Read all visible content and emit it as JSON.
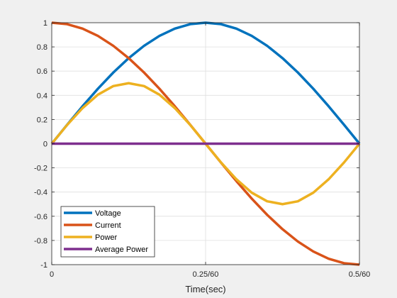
{
  "chart_data": {
    "type": "line",
    "xlabel": "Time(sec)",
    "ylabel": "",
    "title": "",
    "x_unit_period": "1/60",
    "x_range_fraction_of_period": [
      0,
      0.5
    ],
    "xlim": [
      0,
      0.008333
    ],
    "ylim": [
      -1,
      1
    ],
    "x_ticks": [
      {
        "value": 0,
        "label": "0"
      },
      {
        "value": 0.0041667,
        "label": "0.25/60"
      },
      {
        "value": 0.0083333,
        "label": "0.5/60"
      }
    ],
    "y_ticks": [
      {
        "value": 1,
        "label": "1"
      },
      {
        "value": 0.8,
        "label": "0.8"
      },
      {
        "value": 0.6,
        "label": "0.6"
      },
      {
        "value": 0.4,
        "label": "0.4"
      },
      {
        "value": 0.2,
        "label": "0.2"
      },
      {
        "value": 0,
        "label": "0"
      },
      {
        "value": -0.2,
        "label": "-0.2"
      },
      {
        "value": -0.4,
        "label": "-0.4"
      },
      {
        "value": -0.6,
        "label": "-0.6"
      },
      {
        "value": -0.8,
        "label": "-0.8"
      },
      {
        "value": -1,
        "label": "-1"
      }
    ],
    "grid": true,
    "legend_position": "bottom-left",
    "x": [
      0,
      0.00041667,
      0.00083333,
      0.00125,
      0.00166667,
      0.00208333,
      0.0025,
      0.00291667,
      0.00333333,
      0.00375,
      0.00416667,
      0.00458333,
      0.005,
      0.00541667,
      0.00583333,
      0.00625,
      0.00666667,
      0.00708333,
      0.0075,
      0.00791667,
      0.00833333
    ],
    "series": [
      {
        "name": "Voltage",
        "color": "#0072BD",
        "values": [
          0,
          0.156,
          0.309,
          0.454,
          0.588,
          0.707,
          0.809,
          0.891,
          0.951,
          0.988,
          1.0,
          0.988,
          0.951,
          0.891,
          0.809,
          0.707,
          0.588,
          0.454,
          0.309,
          0.156,
          0
        ]
      },
      {
        "name": "Current",
        "color": "#D95319",
        "values": [
          1.0,
          0.988,
          0.951,
          0.891,
          0.809,
          0.707,
          0.588,
          0.454,
          0.309,
          0.156,
          0,
          -0.156,
          -0.309,
          -0.454,
          -0.588,
          -0.707,
          -0.809,
          -0.891,
          -0.951,
          -0.988,
          -1.0
        ]
      },
      {
        "name": "Power",
        "color": "#EDB120",
        "values": [
          0,
          0.155,
          0.294,
          0.405,
          0.476,
          0.5,
          0.476,
          0.405,
          0.294,
          0.155,
          0,
          -0.155,
          -0.294,
          -0.405,
          -0.476,
          -0.5,
          -0.476,
          -0.405,
          -0.294,
          -0.155,
          0
        ]
      },
      {
        "name": "Average Power",
        "color": "#7E2F8E",
        "values": [
          0,
          0,
          0,
          0,
          0,
          0,
          0,
          0,
          0,
          0,
          0,
          0,
          0,
          0,
          0,
          0,
          0,
          0,
          0,
          0,
          0
        ]
      }
    ]
  }
}
